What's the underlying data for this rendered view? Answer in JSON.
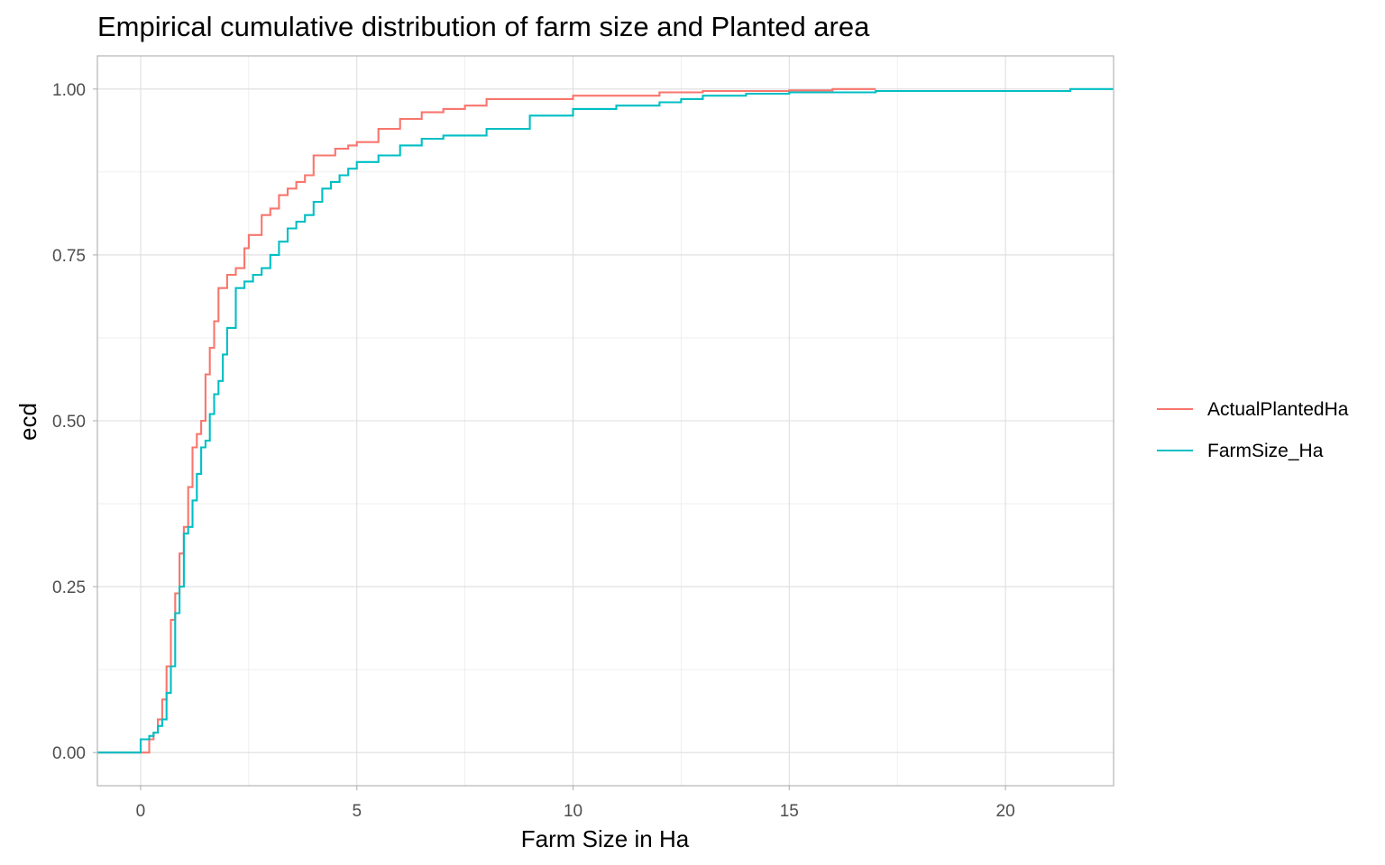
{
  "chart_data": {
    "type": "line",
    "subtype": "ecdf-step",
    "title": "Empirical cumulative distribution of farm size and Planted area",
    "xlabel": "Farm Size in Ha",
    "ylabel": "ecd",
    "xlim": [
      -1,
      22.5
    ],
    "ylim": [
      -0.05,
      1.05
    ],
    "x_ticks": [
      0,
      5,
      10,
      15,
      20
    ],
    "x_tick_labels": [
      "0",
      "5",
      "10",
      "15",
      "20"
    ],
    "y_ticks": [
      0,
      0.25,
      0.5,
      0.75,
      1
    ],
    "y_tick_labels": [
      "0.00",
      "0.25",
      "0.50",
      "0.75",
      "1.00"
    ],
    "grid": true,
    "legend_position": "right",
    "series": [
      {
        "name": "ActualPlantedHa",
        "color": "#F8766D",
        "x": [
          -1,
          0.2,
          0.3,
          0.4,
          0.5,
          0.6,
          0.7,
          0.8,
          0.9,
          1.0,
          1.1,
          1.2,
          1.3,
          1.4,
          1.5,
          1.6,
          1.7,
          1.8,
          1.9,
          2.0,
          2.2,
          2.4,
          2.5,
          2.6,
          2.8,
          3.0,
          3.2,
          3.4,
          3.6,
          3.8,
          4.0,
          4.2,
          4.5,
          4.8,
          5.0,
          5.5,
          6.0,
          6.5,
          7.0,
          7.5,
          8.0,
          9.0,
          10.0,
          11.0,
          12.0,
          13.0,
          14.0,
          15.0,
          16.0,
          17.0
        ],
        "y": [
          0,
          0.02,
          0.03,
          0.05,
          0.08,
          0.13,
          0.2,
          0.24,
          0.3,
          0.34,
          0.4,
          0.46,
          0.48,
          0.5,
          0.57,
          0.61,
          0.65,
          0.7,
          0.7,
          0.72,
          0.73,
          0.76,
          0.78,
          0.78,
          0.81,
          0.82,
          0.84,
          0.85,
          0.86,
          0.87,
          0.9,
          0.9,
          0.91,
          0.915,
          0.92,
          0.94,
          0.955,
          0.965,
          0.97,
          0.975,
          0.985,
          0.985,
          0.99,
          0.99,
          0.995,
          0.997,
          0.997,
          0.998,
          1.0,
          1.0
        ]
      },
      {
        "name": "FarmSize_Ha",
        "color": "#00BFC4",
        "x": [
          -1,
          0.0,
          0.2,
          0.3,
          0.4,
          0.5,
          0.6,
          0.7,
          0.8,
          0.9,
          1.0,
          1.1,
          1.2,
          1.3,
          1.4,
          1.5,
          1.6,
          1.7,
          1.8,
          1.9,
          2.0,
          2.2,
          2.4,
          2.6,
          2.8,
          3.0,
          3.2,
          3.4,
          3.6,
          3.8,
          4.0,
          4.2,
          4.4,
          4.6,
          4.8,
          5.0,
          5.5,
          6.0,
          6.5,
          7.0,
          8.0,
          9.0,
          10.0,
          11.0,
          12.0,
          12.5,
          13.0,
          14.0,
          15.0,
          17.0,
          21.5,
          22.5
        ],
        "y": [
          0,
          0.02,
          0.025,
          0.03,
          0.04,
          0.05,
          0.09,
          0.13,
          0.21,
          0.25,
          0.33,
          0.34,
          0.38,
          0.42,
          0.46,
          0.47,
          0.51,
          0.54,
          0.56,
          0.6,
          0.64,
          0.7,
          0.71,
          0.72,
          0.73,
          0.75,
          0.77,
          0.79,
          0.8,
          0.81,
          0.83,
          0.85,
          0.86,
          0.87,
          0.88,
          0.89,
          0.9,
          0.915,
          0.925,
          0.93,
          0.94,
          0.96,
          0.97,
          0.975,
          0.98,
          0.985,
          0.99,
          0.993,
          0.995,
          0.997,
          1.0,
          1.0
        ]
      }
    ]
  }
}
